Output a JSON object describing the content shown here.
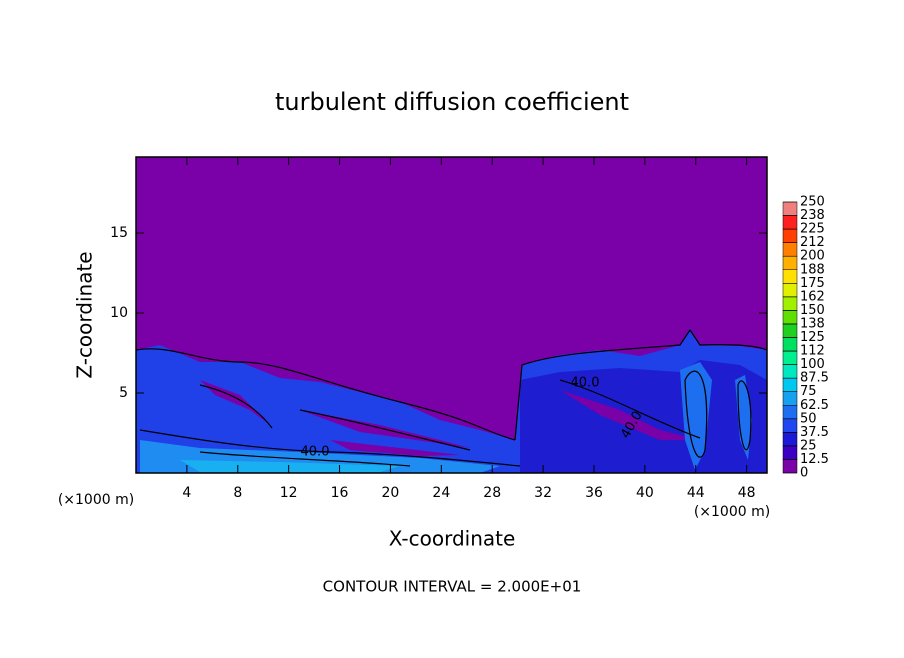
{
  "chart_data": {
    "type": "contour",
    "title": "turbulent diffusion coefficient",
    "x_label": "X-coordinate",
    "y_label": "Z-coordinate",
    "x_unit": "(×1000 m)",
    "y_unit": "(×1000 m)",
    "xlim": [
      0,
      49.6
    ],
    "xticks": [
      4,
      8,
      12,
      16,
      20,
      24,
      28,
      32,
      36,
      40,
      44,
      48
    ],
    "ylim": [
      0,
      19.75
    ],
    "yticks": [
      5,
      10,
      15
    ],
    "footnote": "CONTOUR INTERVAL = 2.000E+01",
    "contour_labels": [
      "40.0",
      "40.0",
      "40.0"
    ],
    "colorbar": {
      "levels": [
        0,
        12.5,
        25,
        37.5,
        50,
        62.5,
        75,
        87.5,
        100,
        {
          "value": 112.5,
          "label": "112"
        },
        125,
        {
          "value": 137.5,
          "label": "138"
        },
        150,
        {
          "value": 162.5,
          "label": "162"
        },
        175,
        {
          "value": 187.5,
          "label": "188"
        },
        200,
        {
          "value": 212.5,
          "label": "212"
        },
        225,
        {
          "value": 237.5,
          "label": "238"
        },
        250
      ],
      "colors": [
        "#7a00a8",
        "#3c00c4",
        "#1a1ad8",
        "#2048f0",
        "#1e6ef0",
        "#18a0f0",
        "#00c8f0",
        "#00e8c0",
        "#00f090",
        "#00e060",
        "#20d020",
        "#60e000",
        "#a0f000",
        "#e0f000",
        "#ffe000",
        "#ffb000",
        "#ff8000",
        "#ff4000",
        "#ff2020",
        "#f08080"
      ]
    }
  }
}
